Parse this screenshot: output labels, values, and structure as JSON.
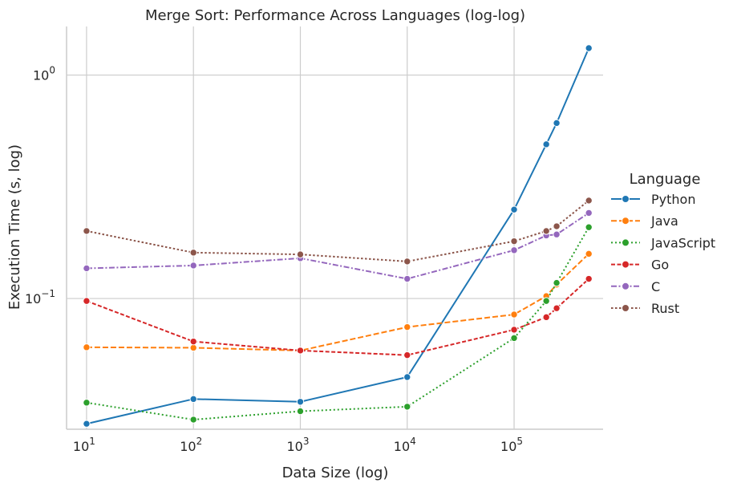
{
  "chart_data": {
    "type": "line",
    "title": "Merge Sort: Performance Across Languages (log-log)",
    "xlabel": "Data Size (log)",
    "ylabel": "Execution Time (s, log)",
    "x_scale": "log",
    "y_scale": "log",
    "xlim": [
      6.5,
      680000
    ],
    "ylim": [
      0.026,
      1.65
    ],
    "x_ticks": [
      {
        "value": 10,
        "base": "10",
        "exp": "1"
      },
      {
        "value": 100,
        "base": "10",
        "exp": "2"
      },
      {
        "value": 1000,
        "base": "10",
        "exp": "3"
      },
      {
        "value": 10000,
        "base": "10",
        "exp": "4"
      },
      {
        "value": 100000,
        "base": "10",
        "exp": "5"
      }
    ],
    "y_ticks": [
      {
        "value": 0.1,
        "base": "10",
        "exp": "−1"
      },
      {
        "value": 1,
        "base": "10",
        "exp": "0"
      }
    ],
    "grid": true,
    "legend_title": "Language",
    "legend_position": "right",
    "series": [
      {
        "name": "Python",
        "color": "#1f77b4",
        "dash": "solid",
        "x": [
          10,
          100,
          1000,
          10000,
          100000,
          200000,
          250000,
          500000
        ],
        "y": [
          0.0275,
          0.0355,
          0.0345,
          0.0445,
          0.25,
          0.49,
          0.61,
          1.32
        ]
      },
      {
        "name": "Java",
        "color": "#ff7f0e",
        "dash": "dashed",
        "x": [
          10,
          100,
          1000,
          10000,
          100000,
          200000,
          250000,
          500000
        ],
        "y": [
          0.0605,
          0.0602,
          0.0585,
          0.0745,
          0.0848,
          0.1025,
          0.1155,
          0.1585
        ]
      },
      {
        "name": "JavaScript",
        "color": "#2ca02c",
        "dash": "dotted",
        "x": [
          10,
          100,
          1000,
          10000,
          100000,
          200000,
          250000,
          500000
        ],
        "y": [
          0.0342,
          0.0287,
          0.0313,
          0.0328,
          0.0665,
          0.0975,
          0.1175,
          0.2085
        ]
      },
      {
        "name": "Go",
        "color": "#d62728",
        "dash": "dashed-fine",
        "x": [
          10,
          100,
          1000,
          10000,
          100000,
          200000,
          250000,
          500000
        ],
        "y": [
          0.0975,
          0.0642,
          0.0585,
          0.0558,
          0.0725,
          0.0825,
          0.0905,
          0.1225
        ]
      },
      {
        "name": "C",
        "color": "#9467bd",
        "dash": "dashdot",
        "x": [
          10,
          100,
          1000,
          10000,
          100000,
          200000,
          250000,
          500000
        ],
        "y": [
          0.1365,
          0.1405,
          0.1515,
          0.1225,
          0.1645,
          0.1915,
          0.1935,
          0.2415
        ]
      },
      {
        "name": "Rust",
        "color": "#8c564b",
        "dash": "densedot",
        "x": [
          10,
          100,
          1000,
          10000,
          100000,
          200000,
          250000,
          500000
        ],
        "y": [
          0.2005,
          0.1605,
          0.1575,
          0.1465,
          0.1805,
          0.2005,
          0.2105,
          0.2745
        ]
      }
    ]
  }
}
